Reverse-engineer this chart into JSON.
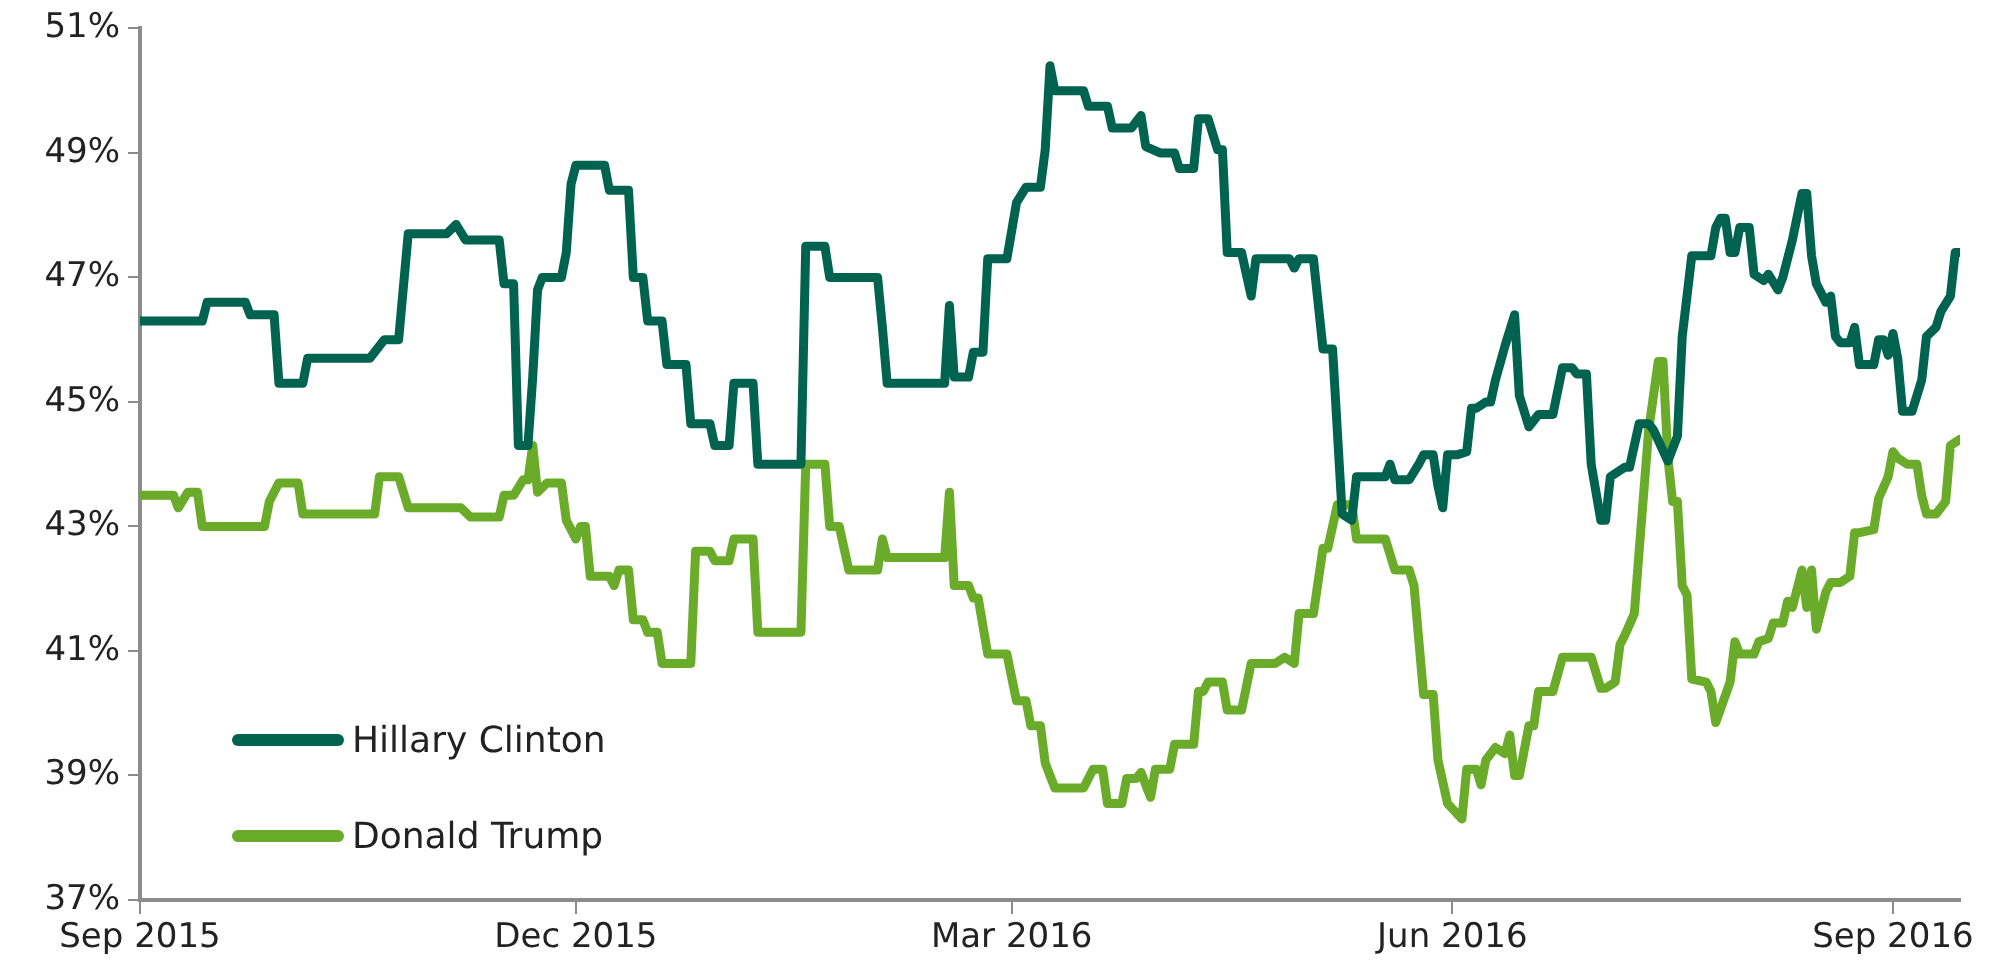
{
  "chart_data": {
    "type": "line",
    "x": [
      "2015-09-01",
      "2015-09-14",
      "2015-09-15",
      "2015-09-23",
      "2015-09-24",
      "2015-09-29",
      "2015-09-30",
      "2015-10-05",
      "2015-10-06",
      "2015-10-19",
      "2015-10-22",
      "2015-10-25",
      "2015-10-27",
      "2015-11-04",
      "2015-11-06",
      "2015-11-08",
      "2015-11-15",
      "2015-11-16",
      "2015-11-18",
      "2015-11-19",
      "2015-11-21",
      "2015-11-22",
      "2015-11-23",
      "2015-11-24",
      "2015-11-28",
      "2015-11-29",
      "2015-11-30",
      "2015-12-01",
      "2015-12-07",
      "2015-12-08",
      "2015-12-12",
      "2015-12-13",
      "2015-12-15",
      "2015-12-16",
      "2015-12-19",
      "2015-12-20",
      "2015-12-24",
      "2015-12-25",
      "2015-12-29",
      "2015-12-30",
      "2016-01-02",
      "2016-01-03",
      "2016-01-07",
      "2016-01-08",
      "2016-01-17",
      "2016-01-18",
      "2016-01-22",
      "2016-01-23",
      "2016-02-02",
      "2016-02-03",
      "2016-02-04",
      "2016-02-16",
      "2016-02-17",
      "2016-02-18",
      "2016-02-21",
      "2016-02-22",
      "2016-02-24",
      "2016-02-25",
      "2016-02-29",
      "2016-03-02",
      "2016-03-04",
      "2016-03-07",
      "2016-03-08",
      "2016-03-09",
      "2016-03-10",
      "2016-03-16",
      "2016-03-17",
      "2016-03-21",
      "2016-03-22",
      "2016-03-26",
      "2016-03-28",
      "2016-03-29",
      "2016-04-01",
      "2016-04-04",
      "2016-04-05",
      "2016-04-08",
      "2016-04-09",
      "2016-04-11",
      "2016-04-13",
      "2016-04-14",
      "2016-04-15",
      "2016-04-18",
      "2016-04-20",
      "2016-04-21",
      "2016-04-28",
      "2016-04-29",
      "2016-04-30",
      "2016-05-03",
      "2016-05-05",
      "2016-05-07",
      "2016-05-09",
      "2016-05-11",
      "2016-05-12",
      "2016-05-18",
      "2016-05-19",
      "2016-05-20",
      "2016-05-23",
      "2016-05-25",
      "2016-05-26",
      "2016-05-28",
      "2016-05-29",
      "2016-05-30",
      "2016-05-31",
      "2016-06-02",
      "2016-06-04",
      "2016-06-05",
      "2016-06-06",
      "2016-06-08",
      "2016-06-09",
      "2016-06-10",
      "2016-06-12",
      "2016-06-14",
      "2016-06-15",
      "2016-06-17",
      "2016-06-19",
      "2016-06-22",
      "2016-06-24",
      "2016-06-26",
      "2016-06-27",
      "2016-06-29",
      "2016-06-30",
      "2016-07-02",
      "2016-07-03",
      "2016-07-04",
      "2016-07-07",
      "2016-07-08",
      "2016-07-10",
      "2016-07-12",
      "2016-07-13",
      "2016-07-16",
      "2016-07-18",
      "2016-07-19",
      "2016-07-21",
      "2016-07-25",
      "2016-07-26",
      "2016-07-27",
      "2016-07-28",
      "2016-07-29",
      "2016-07-30",
      "2016-07-31",
      "2016-08-02",
      "2016-08-03",
      "2016-08-05",
      "2016-08-06",
      "2016-08-08",
      "2016-08-09",
      "2016-08-11",
      "2016-08-13",
      "2016-08-14",
      "2016-08-15",
      "2016-08-16",
      "2016-08-18",
      "2016-08-19",
      "2016-08-20",
      "2016-08-21",
      "2016-08-23",
      "2016-08-24",
      "2016-08-25",
      "2016-08-28",
      "2016-08-29",
      "2016-08-30",
      "2016-08-31",
      "2016-09-01",
      "2016-09-02",
      "2016-09-03",
      "2016-09-05",
      "2016-09-07",
      "2016-09-08",
      "2016-09-10",
      "2016-09-11",
      "2016-09-13",
      "2016-09-14",
      "2016-09-15"
    ],
    "series": [
      {
        "name": "Hillary Clinton",
        "color": "#00634f",
        "values": [
          46.3,
          46.3,
          46.6,
          46.6,
          46.4,
          46.4,
          45.3,
          45.3,
          45.7,
          45.7,
          46.0,
          46.0,
          47.7,
          47.7,
          47.85,
          47.6,
          47.6,
          46.9,
          46.9,
          44.3,
          44.3,
          45.4,
          46.8,
          47.0,
          47.0,
          47.4,
          48.5,
          48.8,
          48.8,
          48.4,
          48.4,
          47.0,
          47.0,
          46.3,
          46.3,
          45.6,
          45.6,
          44.65,
          44.65,
          44.3,
          44.3,
          45.3,
          45.3,
          44.0,
          44.0,
          47.5,
          47.5,
          47.0,
          47.0,
          46.2,
          45.3,
          45.3,
          46.55,
          45.4,
          45.4,
          45.8,
          45.8,
          47.3,
          47.3,
          48.2,
          48.45,
          48.45,
          49.05,
          50.4,
          50.0,
          50.0,
          49.75,
          49.75,
          49.4,
          49.4,
          49.6,
          49.1,
          49.0,
          49.0,
          48.75,
          48.75,
          49.55,
          49.55,
          49.05,
          49.05,
          47.4,
          47.4,
          46.7,
          47.3,
          47.3,
          47.15,
          47.3,
          47.3,
          45.85,
          45.85,
          43.2,
          43.1,
          43.8,
          43.8,
          44.0,
          43.75,
          43.75,
          44.0,
          44.15,
          44.15,
          43.65,
          43.3,
          44.15,
          44.15,
          44.2,
          44.9,
          44.9,
          45.0,
          45.0,
          45.35,
          45.9,
          46.4,
          45.1,
          44.6,
          44.8,
          44.8,
          45.55,
          45.55,
          45.45,
          45.45,
          44.0,
          43.1,
          43.1,
          43.8,
          43.95,
          43.95,
          44.65,
          44.65,
          44.55,
          44.05,
          44.45,
          46.05,
          47.35,
          47.35,
          47.8,
          47.95,
          47.95,
          47.4,
          47.4,
          47.8,
          47.8,
          47.05,
          46.95,
          47.05,
          46.8,
          47.0,
          47.6,
          48.35,
          48.35,
          47.35,
          46.9,
          46.6,
          46.7,
          46.05,
          45.95,
          45.95,
          46.2,
          45.6,
          45.6,
          46.0,
          46.0,
          45.75,
          46.1,
          45.7,
          44.85,
          44.85,
          45.35,
          46.05,
          46.2,
          46.45,
          46.7,
          47.4,
          47.4
        ]
      },
      {
        "name": "Donald Trump",
        "color": "#6aab2a",
        "x": [
          "2015-09-01",
          "2015-09-08",
          "2015-09-09",
          "2015-09-11",
          "2015-09-13",
          "2015-09-14",
          "2015-09-27",
          "2015-09-28",
          "2015-09-30",
          "2015-10-04",
          "2015-10-05",
          "2015-10-20",
          "2015-10-21",
          "2015-10-25",
          "2015-10-27",
          "2015-11-07",
          "2015-11-09",
          "2015-11-15",
          "2015-11-16",
          "2015-11-18",
          "2015-11-20",
          "2015-11-21",
          "2015-11-22",
          "2015-11-23",
          "2015-11-25",
          "2015-11-28",
          "2015-11-29",
          "2015-12-01",
          "2015-12-02",
          "2015-12-03",
          "2015-12-04",
          "2015-12-08",
          "2015-12-09",
          "2015-12-10",
          "2015-12-12",
          "2015-12-13",
          "2015-12-15",
          "2015-12-16",
          "2015-12-18",
          "2015-12-19",
          "2015-12-25",
          "2015-12-26",
          "2015-12-29",
          "2015-12-30",
          "2016-01-02",
          "2016-01-03",
          "2016-01-07",
          "2016-01-08",
          "2016-01-17",
          "2016-01-18",
          "2016-01-22",
          "2016-01-23",
          "2016-01-25",
          "2016-01-27",
          "2016-02-02",
          "2016-02-03",
          "2016-02-04",
          "2016-02-16",
          "2016-02-17",
          "2016-02-18",
          "2016-02-21",
          "2016-02-22",
          "2016-02-23",
          "2016-02-25",
          "2016-02-29",
          "2016-03-02",
          "2016-03-04",
          "2016-03-05",
          "2016-03-07",
          "2016-03-08",
          "2016-03-10",
          "2016-03-16",
          "2016-03-18",
          "2016-03-20",
          "2016-03-21",
          "2016-03-24",
          "2016-03-25",
          "2016-03-27",
          "2016-03-28",
          "2016-03-30",
          "2016-03-31",
          "2016-04-03",
          "2016-04-04",
          "2016-04-08",
          "2016-04-09",
          "2016-04-10",
          "2016-04-11",
          "2016-04-14",
          "2016-04-15",
          "2016-04-18",
          "2016-04-20",
          "2016-04-25",
          "2016-04-27",
          "2016-04-29",
          "2016-04-30",
          "2016-05-03",
          "2016-05-05",
          "2016-05-06",
          "2016-05-08",
          "2016-05-11",
          "2016-05-12",
          "2016-05-18",
          "2016-05-20",
          "2016-05-23",
          "2016-05-24",
          "2016-05-26",
          "2016-05-28",
          "2016-05-29",
          "2016-05-31",
          "2016-06-03",
          "2016-06-04",
          "2016-06-06",
          "2016-06-07",
          "2016-06-08",
          "2016-06-10",
          "2016-06-12",
          "2016-06-13",
          "2016-06-14",
          "2016-06-15",
          "2016-06-17",
          "2016-06-18",
          "2016-06-19",
          "2016-06-22",
          "2016-06-24",
          "2016-06-30",
          "2016-07-02",
          "2016-07-03",
          "2016-07-05",
          "2016-07-06",
          "2016-07-07",
          "2016-07-09",
          "2016-07-10",
          "2016-07-12",
          "2016-07-14",
          "2016-07-15",
          "2016-07-16",
          "2016-07-17",
          "2016-07-18",
          "2016-07-19",
          "2016-07-20",
          "2016-07-21",
          "2016-07-24",
          "2016-07-25",
          "2016-07-26",
          "2016-07-29",
          "2016-07-30",
          "2016-07-31",
          "2016-08-03",
          "2016-08-04",
          "2016-08-06",
          "2016-08-07",
          "2016-08-09",
          "2016-08-10",
          "2016-08-11",
          "2016-08-13",
          "2016-08-14",
          "2016-08-15",
          "2016-08-16",
          "2016-08-18",
          "2016-08-19",
          "2016-08-21",
          "2016-08-23",
          "2016-08-24",
          "2016-08-25",
          "2016-08-28",
          "2016-08-29",
          "2016-08-31",
          "2016-09-01",
          "2016-09-02",
          "2016-09-04",
          "2016-09-06",
          "2016-09-07",
          "2016-09-08",
          "2016-09-10",
          "2016-09-12",
          "2016-09-13",
          "2016-09-15"
        ],
        "values": [
          43.5,
          43.5,
          43.3,
          43.55,
          43.55,
          43.0,
          43.0,
          43.4,
          43.7,
          43.7,
          43.2,
          43.2,
          43.8,
          43.8,
          43.3,
          43.3,
          43.15,
          43.15,
          43.5,
          43.5,
          43.75,
          43.75,
          44.3,
          43.55,
          43.7,
          43.7,
          43.1,
          42.8,
          43.0,
          43.0,
          42.2,
          42.2,
          42.05,
          42.3,
          42.3,
          41.5,
          41.5,
          41.3,
          41.3,
          40.8,
          40.8,
          42.6,
          42.6,
          42.45,
          42.45,
          42.8,
          42.8,
          41.3,
          41.3,
          44.0,
          44.0,
          43.0,
          43.0,
          42.3,
          42.3,
          42.8,
          42.5,
          42.5,
          43.55,
          42.05,
          42.05,
          41.85,
          41.85,
          40.95,
          40.95,
          40.2,
          40.2,
          39.8,
          39.8,
          39.2,
          38.8,
          38.8,
          39.1,
          39.1,
          38.55,
          38.55,
          38.95,
          38.95,
          39.05,
          38.65,
          39.1,
          39.1,
          39.5,
          39.5,
          40.35,
          40.35,
          40.5,
          40.5,
          40.05,
          40.05,
          40.8,
          40.8,
          40.9,
          40.8,
          41.6,
          41.6,
          42.65,
          42.65,
          43.35,
          43.35,
          42.8,
          42.8,
          42.3,
          42.3,
          42.05,
          40.3,
          40.3,
          39.25,
          38.55,
          38.3,
          39.1,
          39.1,
          38.85,
          39.25,
          39.45,
          39.35,
          39.65,
          39.0,
          39.0,
          39.8,
          39.8,
          40.35,
          40.35,
          40.9,
          40.9,
          40.4,
          40.4,
          40.5,
          41.1,
          41.25,
          41.6,
          42.6,
          44.55,
          45.65,
          45.65,
          44.1,
          43.4,
          43.4,
          42.05,
          41.9,
          40.55,
          40.5,
          40.35,
          39.85,
          40.5,
          41.15,
          40.95,
          40.95,
          41.15,
          41.2,
          41.45,
          41.45,
          41.8,
          41.7,
          42.3,
          41.7,
          42.3,
          41.35,
          41.95,
          42.1,
          42.1,
          42.2,
          42.9,
          42.9,
          42.95,
          43.45,
          43.8,
          44.2,
          44.1,
          44.0,
          44.0,
          43.5,
          43.2,
          43.2,
          43.4,
          44.3,
          44.4
        ]
      }
    ],
    "xlim": [
      "2015-09-01",
      "2016-09-15"
    ],
    "xticks": [
      {
        "value": "2015-09-01",
        "label": "Sep 2015"
      },
      {
        "value": "2015-12-01",
        "label": "Dec 2015"
      },
      {
        "value": "2016-03-01",
        "label": "Mar 2016"
      },
      {
        "value": "2016-06-01",
        "label": "Jun 2016"
      },
      {
        "value": "2016-09-01",
        "label": "Sep 2016"
      }
    ],
    "ylim": [
      37,
      51
    ],
    "yticks": [
      {
        "value": 37,
        "label": "37%"
      },
      {
        "value": 39,
        "label": "39%"
      },
      {
        "value": 41,
        "label": "41%"
      },
      {
        "value": 43,
        "label": "43%"
      },
      {
        "value": 45,
        "label": "45%"
      },
      {
        "value": 47,
        "label": "47%"
      },
      {
        "value": 49,
        "label": "49%"
      },
      {
        "value": 51,
        "label": "51%"
      }
    ],
    "grid": false,
    "legend": "bottom left",
    "marker": "none",
    "line_style": "solid"
  }
}
